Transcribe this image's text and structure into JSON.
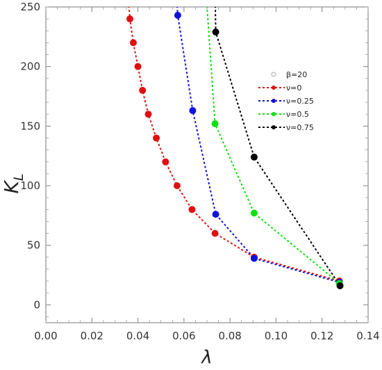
{
  "chart_data": {
    "type": "line",
    "xlabel": "λ",
    "ylabel_main": "K",
    "ylabel_sub": "L",
    "xlim": [
      0.0,
      0.14
    ],
    "ylim": [
      -15,
      250
    ],
    "xticks": [
      0.0,
      0.02,
      0.04,
      0.06,
      0.08,
      0.1,
      0.12,
      0.14
    ],
    "xtick_labels": [
      "0.00",
      "0.02",
      "0.04",
      "0.06",
      "0.08",
      "0.10",
      "0.12",
      "0.14"
    ],
    "yticks": [
      0,
      50,
      100,
      150,
      200,
      250
    ],
    "ytick_labels": [
      "0",
      "50",
      "100",
      "150",
      "200",
      "250"
    ],
    "legend_placement": "right",
    "legend_header": {
      "label": "β=20",
      "color": "#aaaaaa"
    },
    "series": [
      {
        "name": "ν=0",
        "color": "#e01010",
        "x": [
          0.0355,
          0.0365,
          0.038,
          0.04,
          0.042,
          0.0445,
          0.048,
          0.052,
          0.057,
          0.0635,
          0.0735,
          0.0905,
          0.1275
        ],
        "y": [
          265,
          240,
          220,
          200,
          180,
          160,
          140,
          120,
          100,
          80,
          60,
          40,
          20
        ],
        "markers": [
          false,
          true,
          true,
          true,
          true,
          true,
          true,
          true,
          true,
          true,
          true,
          true,
          true
        ]
      },
      {
        "name": "ν=0.25",
        "color": "#1010e0",
        "x": [
          0.0565,
          0.0573,
          0.0638,
          0.0738,
          0.0905,
          0.1275
        ],
        "y": [
          265,
          243,
          163,
          76,
          39,
          19
        ],
        "markers": [
          false,
          true,
          true,
          true,
          true,
          true
        ]
      },
      {
        "name": "ν=0.5",
        "color": "#10e010",
        "x": [
          0.0695,
          0.0735,
          0.0905,
          0.1275
        ],
        "y": [
          265,
          152,
          77,
          18
        ],
        "markers": [
          false,
          true,
          true,
          true
        ]
      },
      {
        "name": "ν=0.75",
        "color": "#000000",
        "x": [
          0.0735,
          0.0738,
          0.0905,
          0.1278
        ],
        "y": [
          265,
          229,
          124,
          16
        ],
        "markers": [
          false,
          true,
          true,
          true
        ]
      }
    ]
  }
}
